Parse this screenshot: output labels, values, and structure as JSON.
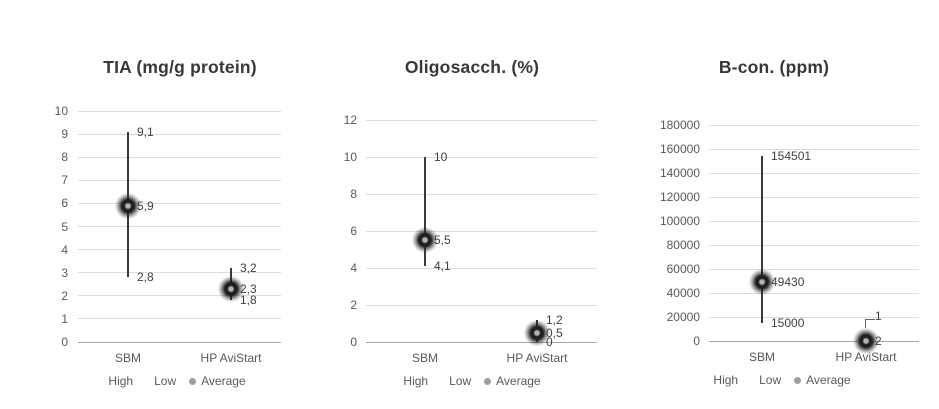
{
  "chart_data": [
    {
      "type": "hilo-average",
      "title": "TIA (mg/g protein)",
      "categories": [
        "SBM",
        "HP AviStart"
      ],
      "legend": [
        "High",
        "Low",
        "Average"
      ],
      "axis": {
        "min": 0,
        "max": 10,
        "step": 1,
        "ticks": [
          "10",
          "9",
          "8",
          "7",
          "6",
          "5",
          "4",
          "3",
          "2",
          "1",
          "0"
        ]
      },
      "grid": true,
      "legend_position": "bottom",
      "series": [
        {
          "category": "SBM",
          "high": 9.1,
          "low": 2.8,
          "average": 5.9,
          "labels": {
            "high": "9,1",
            "average": "5,9",
            "low": "2,8"
          }
        },
        {
          "category": "HP AviStart",
          "high": 3.2,
          "low": 1.8,
          "average": 2.3,
          "labels": {
            "high": "3,2",
            "average": "2,3",
            "low": "1,8"
          }
        }
      ]
    },
    {
      "type": "hilo-average",
      "title": "Oligosacch. (%)",
      "categories": [
        "SBM",
        "HP AviStart"
      ],
      "legend": [
        "High",
        "Low",
        "Average"
      ],
      "axis": {
        "min": 0,
        "max": 12,
        "step": 2,
        "ticks": [
          "12",
          "10",
          "8",
          "6",
          "4",
          "2",
          "0"
        ]
      },
      "grid": true,
      "legend_position": "bottom",
      "series": [
        {
          "category": "SBM",
          "high": 10,
          "low": 4.1,
          "average": 5.5,
          "labels": {
            "high": "10",
            "average": "5,5",
            "low": "4,1"
          }
        },
        {
          "category": "HP AviStart",
          "high": 1.2,
          "low": 0,
          "average": 0.5,
          "labels": {
            "high": "1,2",
            "average": "0,5",
            "low": "0"
          }
        }
      ]
    },
    {
      "type": "hilo-average",
      "title": "B-con. (ppm)",
      "categories": [
        "SBM",
        "HP AviStart"
      ],
      "legend": [
        "High",
        "Low",
        "Average"
      ],
      "axis": {
        "min": 0,
        "max": 180000,
        "step": 20000,
        "ticks": [
          "180000",
          "160000",
          "140000",
          "120000",
          "100000",
          "80000",
          "60000",
          "40000",
          "20000",
          "0"
        ]
      },
      "grid": true,
      "legend_position": "bottom",
      "series": [
        {
          "category": "SBM",
          "high": 154501,
          "low": 15000,
          "average": 49430,
          "labels": {
            "high": "154501",
            "average": "49430",
            "low": "15000"
          }
        },
        {
          "category": "HP AviStart",
          "high": 1,
          "low": 0,
          "average": 2,
          "labels": {
            "high": "1",
            "average": "2",
            "low": ""
          },
          "high_label_leader": true
        }
      ]
    }
  ],
  "colors": {
    "title": "#383838",
    "axis_text": "#595959",
    "gridline": "#dcdcdc",
    "zero_line": "#a6a6a6",
    "whisker": "#3a3a3a",
    "marker_ring": "#1f1f1f",
    "marker_center": "#b3b3b3",
    "data_label": "#404040",
    "legend_dot": "#9e9e9e"
  }
}
